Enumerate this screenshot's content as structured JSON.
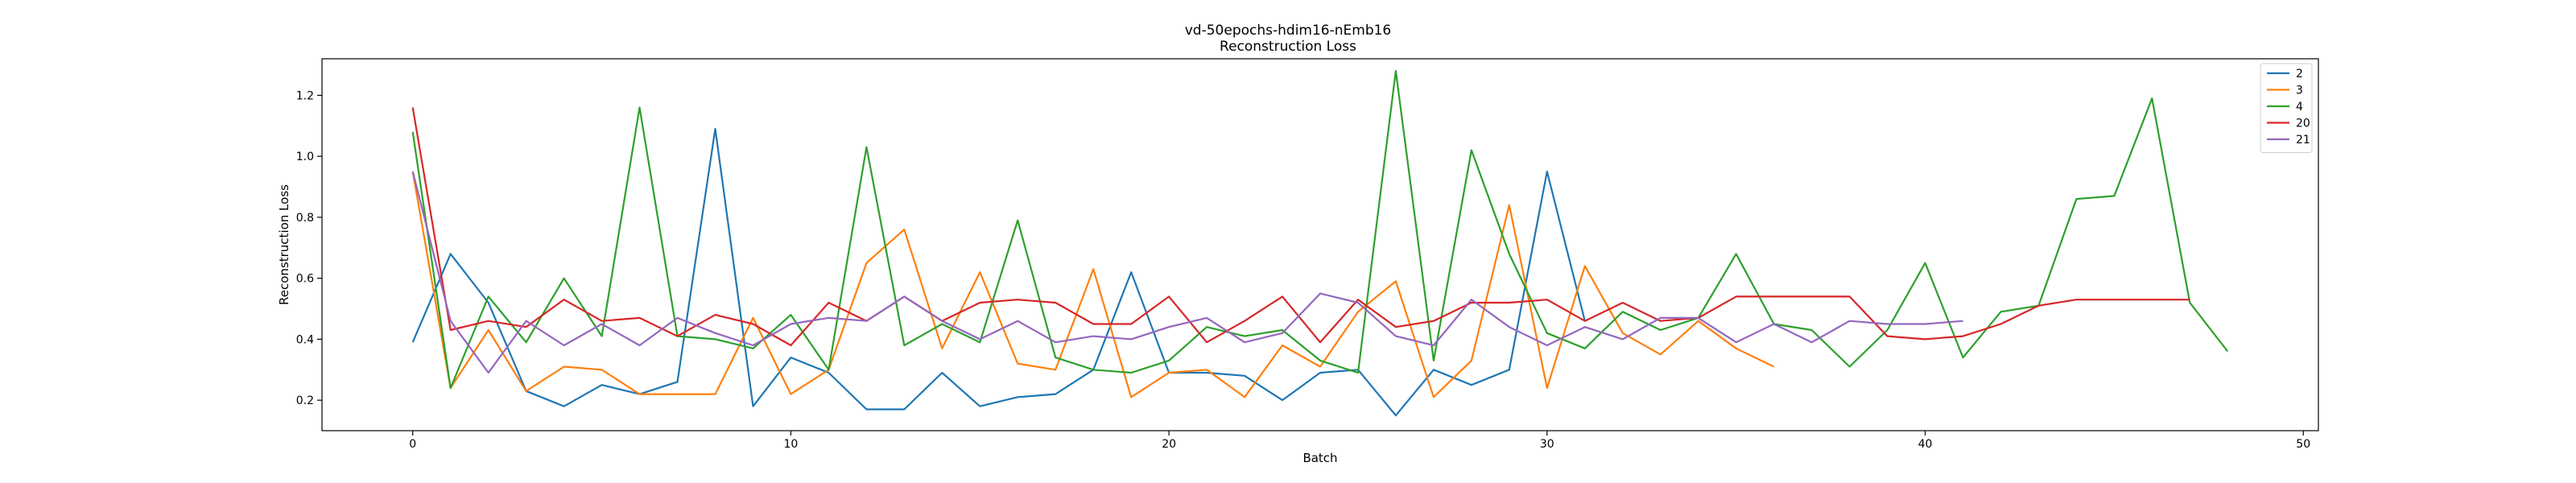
{
  "chart_data": {
    "type": "line",
    "title": "vd-50epochs-hdim16-nEmb16",
    "subtitle": "Reconstruction Loss",
    "xlabel": "Batch",
    "ylabel": "Reconstruction Loss",
    "xlim": [
      -2.4,
      50.4
    ],
    "ylim": [
      0.1,
      1.32
    ],
    "xticks": [
      0,
      10,
      20,
      30,
      40,
      50
    ],
    "yticks": [
      0.2,
      0.4,
      0.6,
      0.8,
      1.0,
      1.2
    ],
    "xtick_labels": [
      "0",
      "10",
      "20",
      "30",
      "40",
      "50"
    ],
    "ytick_labels": [
      "0.2",
      "0.4",
      "0.6",
      "0.8",
      "1.0",
      "1.2"
    ],
    "grid": false,
    "legend_position": "top-right",
    "series": [
      {
        "name": "2",
        "color": "#1f77b4",
        "values": [
          0.39,
          0.68,
          0.52,
          0.23,
          0.18,
          0.25,
          0.22,
          0.26,
          1.09,
          0.18,
          0.34,
          0.29,
          0.17,
          0.17,
          0.29,
          0.18,
          0.21,
          0.22,
          0.3,
          0.62,
          0.29,
          0.29,
          0.28,
          0.2,
          0.29,
          0.3,
          0.15,
          0.3,
          0.25,
          0.3,
          0.95,
          0.46
        ]
      },
      {
        "name": "3",
        "color": "#ff7f0e",
        "values": [
          0.95,
          0.24,
          0.43,
          0.23,
          0.31,
          0.3,
          0.22,
          0.22,
          0.22,
          0.47,
          0.22,
          0.3,
          0.65,
          0.76,
          0.37,
          0.62,
          0.32,
          0.3,
          0.63,
          0.21,
          0.29,
          0.3,
          0.21,
          0.38,
          0.31,
          0.49,
          0.59,
          0.21,
          0.33,
          0.84,
          0.24,
          0.64,
          0.42,
          0.35,
          0.46,
          0.37,
          0.31
        ]
      },
      {
        "name": "4",
        "color": "#2ca02c",
        "values": [
          1.08,
          0.24,
          0.54,
          0.39,
          0.6,
          0.41,
          1.16,
          0.41,
          0.4,
          0.37,
          0.48,
          0.3,
          1.03,
          0.38,
          0.45,
          0.39,
          0.79,
          0.34,
          0.3,
          0.29,
          0.33,
          0.44,
          0.41,
          0.43,
          0.33,
          0.29,
          1.28,
          0.33,
          1.02,
          0.68,
          0.42,
          0.37,
          0.49,
          0.43,
          0.47,
          0.68,
          0.45,
          0.43,
          0.31,
          0.43,
          0.65,
          0.34,
          0.49,
          0.51,
          0.86,
          0.87,
          1.19,
          0.52,
          0.36
        ]
      },
      {
        "name": "20",
        "color": "#d62728",
        "values": [
          1.16,
          0.43,
          0.46,
          0.44,
          0.53,
          0.46,
          0.47,
          0.41,
          0.48,
          0.45,
          0.38,
          0.52,
          0.46,
          0.54,
          0.46,
          0.52,
          0.53,
          0.52,
          0.45,
          0.45,
          0.54,
          0.39,
          0.46,
          0.54,
          0.39,
          0.53,
          0.44,
          0.46,
          0.52,
          0.52,
          0.53,
          0.46,
          0.52,
          0.46,
          0.47,
          0.54,
          0.54,
          0.54,
          0.54,
          0.41,
          0.4,
          0.41,
          0.45,
          0.51,
          0.53,
          0.53,
          0.53,
          0.53
        ]
      },
      {
        "name": "21",
        "color": "#9467bd",
        "values": [
          0.95,
          0.46,
          0.29,
          0.46,
          0.38,
          0.45,
          0.38,
          0.47,
          0.42,
          0.38,
          0.45,
          0.47,
          0.46,
          0.54,
          0.46,
          0.4,
          0.46,
          0.39,
          0.41,
          0.4,
          0.44,
          0.47,
          0.39,
          0.42,
          0.55,
          0.52,
          0.41,
          0.38,
          0.53,
          0.44,
          0.38,
          0.44,
          0.4,
          0.47,
          0.47,
          0.39,
          0.45,
          0.39,
          0.46,
          0.45,
          0.45,
          0.46
        ]
      }
    ]
  }
}
